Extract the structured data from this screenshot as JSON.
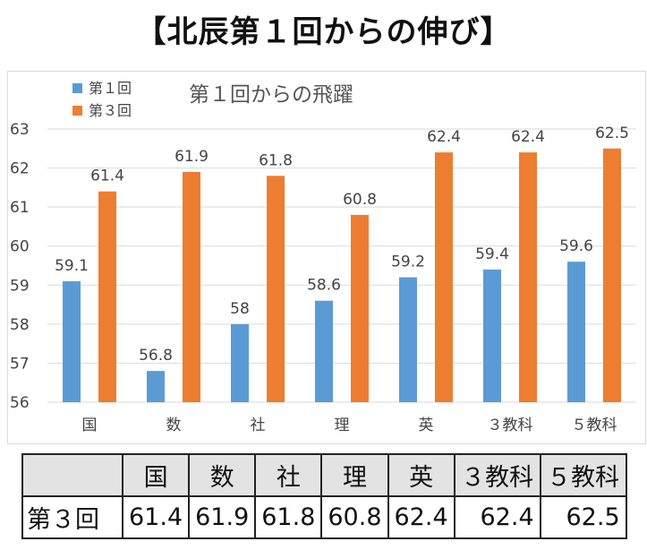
{
  "page": {
    "title": "【北辰第１回からの伸び】"
  },
  "chart_data": {
    "type": "bar",
    "title": "第１回からの飛躍",
    "categories": [
      "国",
      "数",
      "社",
      "理",
      "英",
      "３教科",
      "５教科"
    ],
    "series": [
      {
        "name": "第１回",
        "values": [
          59.1,
          56.8,
          58,
          58.6,
          59.2,
          59.4,
          59.6
        ]
      },
      {
        "name": "第３回",
        "values": [
          61.4,
          61.9,
          61.8,
          60.8,
          62.4,
          62.4,
          62.5
        ]
      }
    ],
    "value_labels": [
      [
        "59.1",
        "56.8",
        "58",
        "58.6",
        "59.2",
        "59.4",
        "59.6"
      ],
      [
        "61.4",
        "61.9",
        "61.8",
        "60.8",
        "62.4",
        "62.4",
        "62.5"
      ]
    ],
    "ylim": [
      56,
      63
    ],
    "yticks": [
      "56",
      "57",
      "58",
      "59",
      "60",
      "61",
      "62",
      "63"
    ],
    "grid": true,
    "legend_position": "top-left",
    "colors": [
      "#5b9bd5",
      "#ed7d31"
    ]
  },
  "table": {
    "header": [
      "",
      "国",
      "数",
      "社",
      "理",
      "英",
      "３教科",
      "５教科"
    ],
    "rows": [
      {
        "label": "第３回",
        "values": [
          "61.4",
          "61.9",
          "61.8",
          "60.8",
          "62.4",
          "62.4",
          "62.5"
        ]
      }
    ]
  }
}
